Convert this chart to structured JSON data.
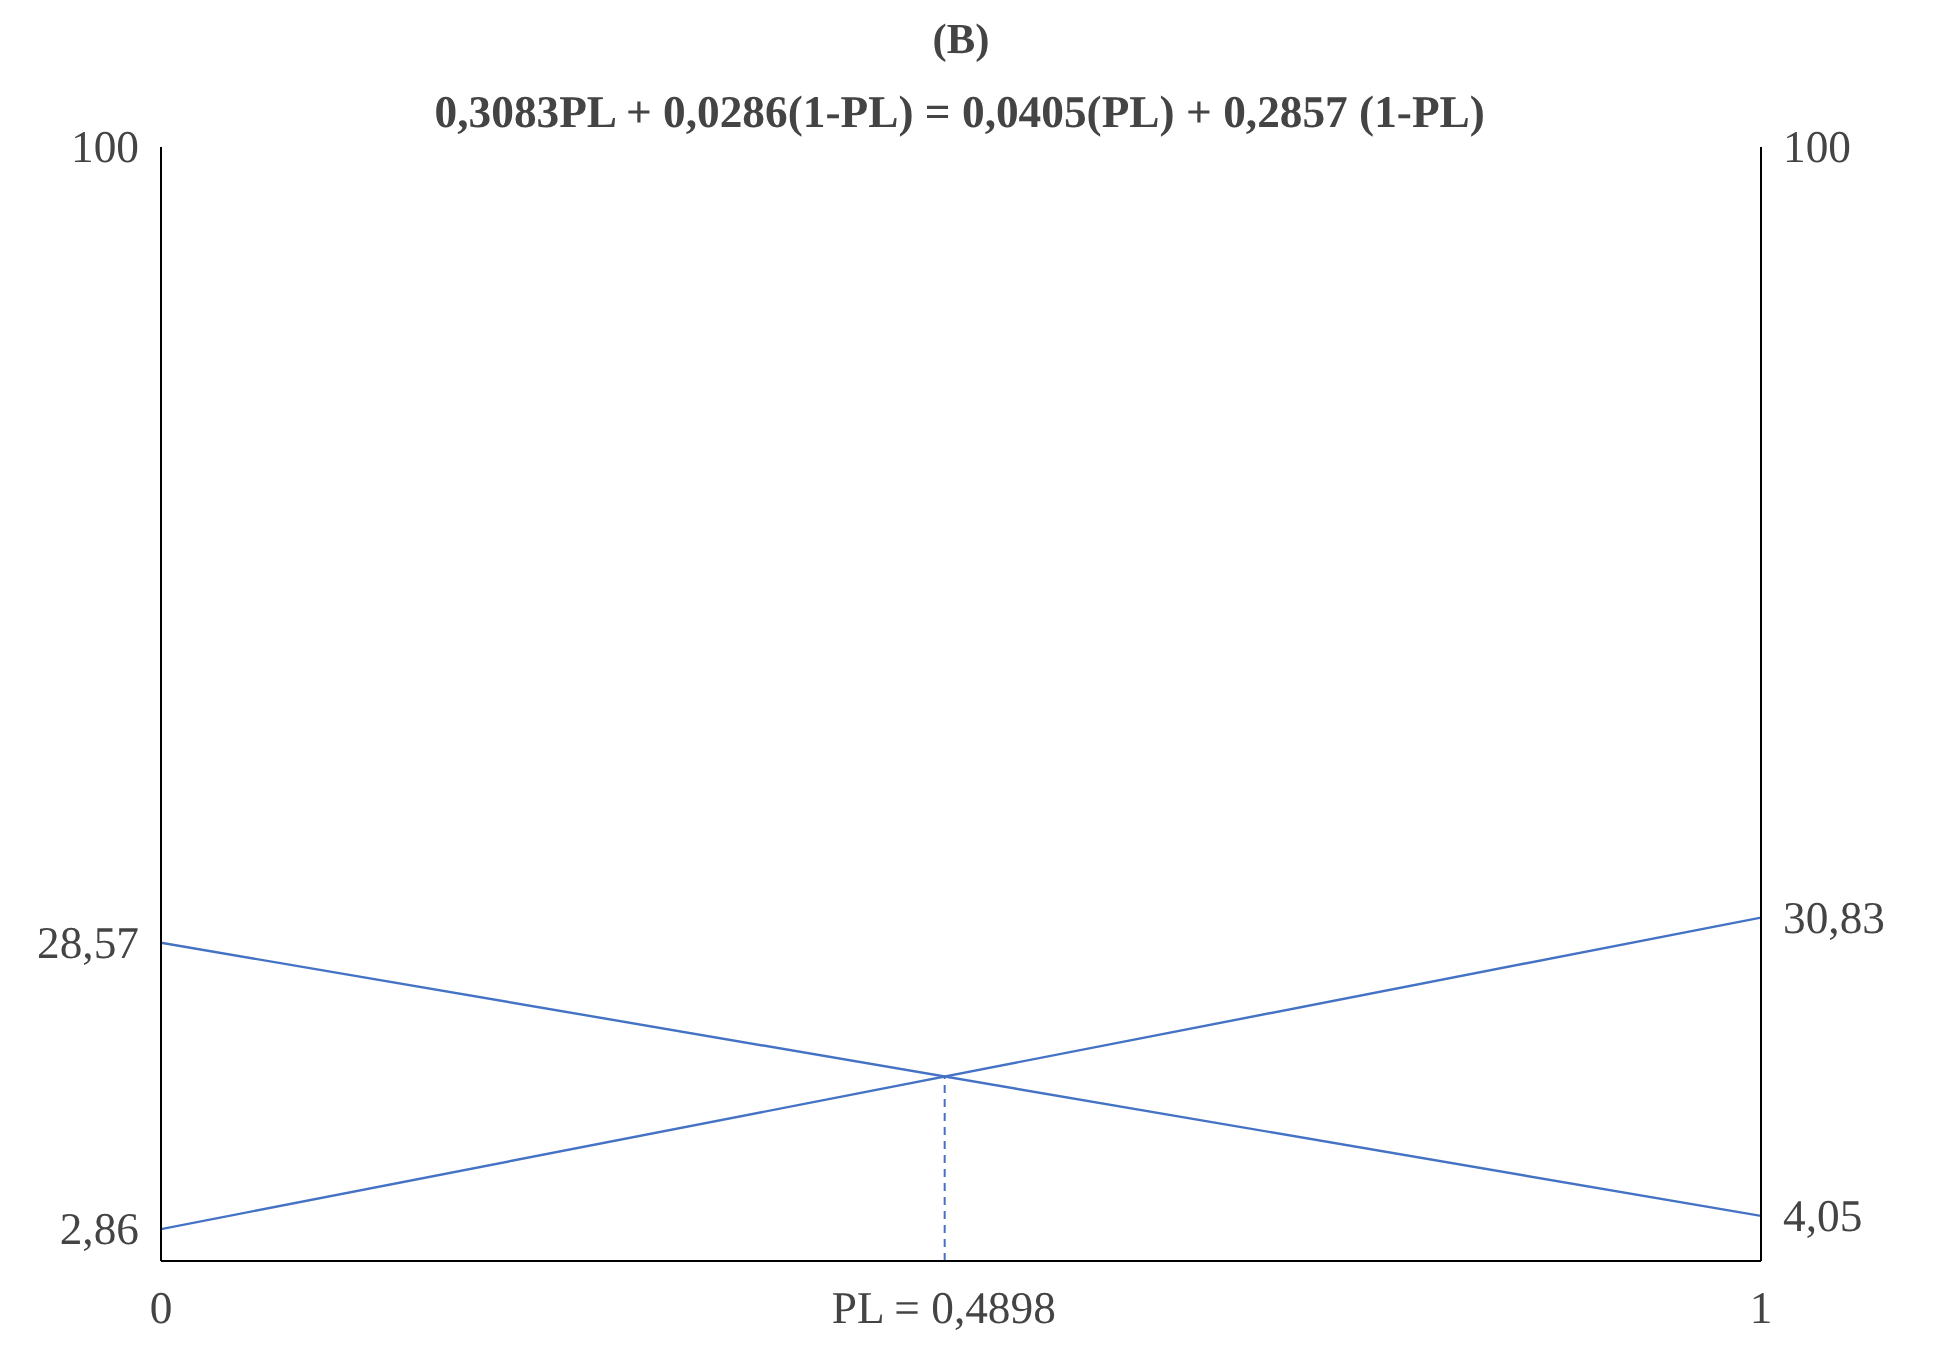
{
  "chart_data": {
    "type": "line",
    "title": "(B)",
    "subtitle": "0,3083PL + 0,0286(1-PL) = 0,0405(PL) + 0,2857 (1-PL)",
    "x": [
      0,
      1
    ],
    "series": [
      {
        "color": "#4472c4",
        "values": [
          2.86,
          30.83
        ]
      },
      {
        "color": "#4472c4",
        "values": [
          28.57,
          4.05
        ]
      }
    ],
    "xlim": [
      0,
      1
    ],
    "xticks": [
      0,
      {
        "value": 0.4898,
        "label": "PL = 0,4898"
      },
      1
    ],
    "ylim": [
      0,
      100
    ],
    "yticks": [
      {
        "value": 2.86,
        "label": "2,86"
      },
      {
        "value": 28.57,
        "label": "28,57"
      },
      100
    ],
    "y2lim": [
      0,
      100
    ],
    "y2ticks": [
      {
        "value": 4.05,
        "label": "4,05"
      },
      {
        "value": 30.83,
        "label": "30,83"
      },
      100
    ],
    "ref_lines": [
      {
        "axis": "x",
        "value": 0.4898,
        "color": "#4472c4",
        "line_style": "dashed"
      }
    ],
    "grid": false,
    "marker": "none",
    "line_style": "solid"
  }
}
